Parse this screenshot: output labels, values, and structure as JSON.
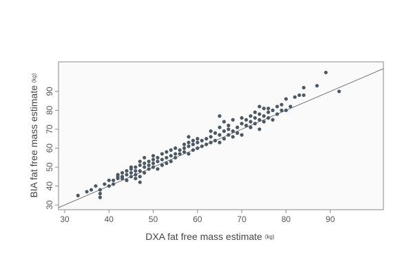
{
  "chart_data": {
    "type": "scatter",
    "xlabel": "DXA fat free mass estimate",
    "xlabel_unit": "(kg)",
    "ylabel": "BIA fat free mass estimate",
    "ylabel_unit": "(kg)",
    "color": "#4b5965",
    "identity_line": true,
    "xlim": [
      28.6,
      102
    ],
    "ylim": [
      27.5,
      105.6
    ],
    "xticks": [
      30,
      40,
      50,
      60,
      70,
      80,
      90
    ],
    "yticks": [
      30,
      40,
      50,
      60,
      70,
      80,
      90
    ],
    "x": [
      33,
      35,
      36,
      37,
      38,
      38,
      38,
      39,
      40,
      40,
      41,
      41,
      42,
      42,
      42,
      43,
      43,
      43,
      44,
      44,
      44,
      45,
      45,
      45,
      45,
      46,
      46,
      46,
      46,
      47,
      47,
      47,
      47,
      47,
      48,
      48,
      48,
      48,
      49,
      49,
      49,
      50,
      50,
      50,
      50,
      51,
      51,
      51,
      52,
      52,
      52,
      53,
      53,
      53,
      54,
      54,
      54,
      55,
      55,
      55,
      56,
      56,
      57,
      57,
      57,
      58,
      58,
      58,
      58,
      59,
      59,
      59,
      60,
      60,
      60,
      61,
      61,
      62,
      62,
      63,
      63,
      63,
      64,
      64,
      65,
      65,
      65,
      65,
      66,
      66,
      66,
      67,
      67,
      67,
      68,
      68,
      68,
      69,
      69,
      70,
      70,
      70,
      71,
      71,
      72,
      72,
      72,
      73,
      73,
      73,
      74,
      74,
      74,
      74,
      75,
      75,
      75,
      76,
      76,
      76,
      77,
      77,
      78,
      78,
      79,
      79,
      80,
      80,
      81,
      82,
      83,
      84,
      84,
      87,
      89,
      92
    ],
    "y": [
      35,
      37,
      38,
      40,
      34,
      36,
      38,
      41,
      40,
      43,
      43,
      41,
      44,
      46,
      45,
      44,
      47,
      45,
      46,
      48,
      43,
      45,
      47,
      49,
      50,
      44,
      46,
      48,
      50,
      42,
      45,
      48,
      51,
      53,
      47,
      50,
      52,
      55,
      49,
      51,
      53,
      50,
      52,
      54,
      56,
      49,
      53,
      55,
      51,
      54,
      57,
      52,
      55,
      58,
      53,
      56,
      59,
      55,
      57,
      60,
      57,
      59,
      58,
      60,
      62,
      57,
      61,
      63,
      66,
      59,
      62,
      64,
      60,
      63,
      65,
      61,
      64,
      62,
      65,
      63,
      66,
      69,
      64,
      68,
      63,
      67,
      71,
      77,
      65,
      69,
      74,
      67,
      70,
      72,
      66,
      69,
      75,
      68,
      71,
      67,
      73,
      76,
      72,
      75,
      71,
      74,
      77,
      73,
      76,
      79,
      70,
      75,
      78,
      82,
      74,
      77,
      81,
      76,
      79,
      81,
      75,
      80,
      78,
      82,
      80,
      83,
      80,
      86,
      82,
      87,
      88,
      88,
      92,
      93,
      100,
      90
    ]
  }
}
